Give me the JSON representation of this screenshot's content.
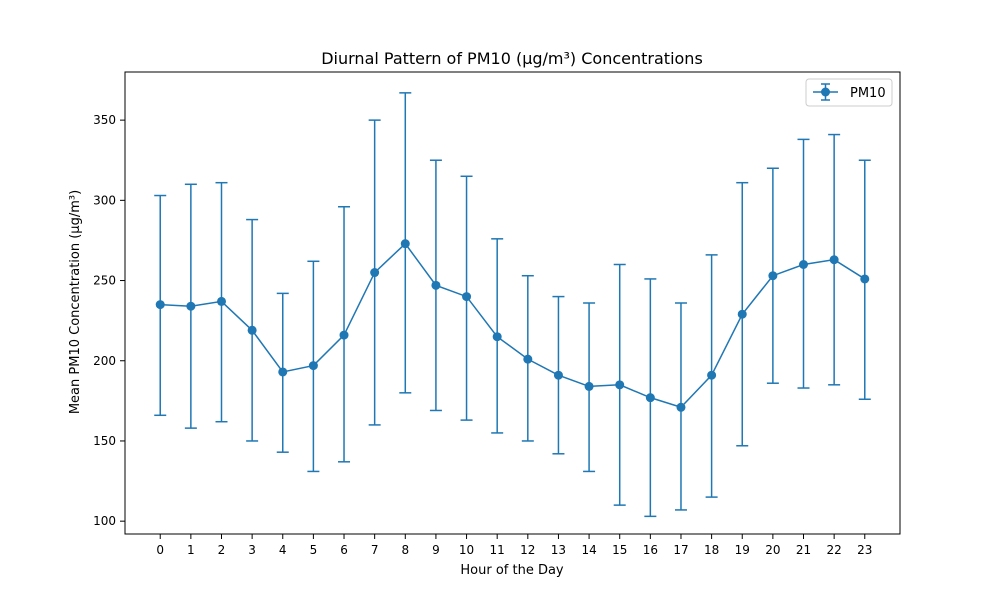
{
  "chart_data": {
    "type": "line",
    "title": "Diurnal Pattern of PM10 (µg/m³) Concentrations",
    "xlabel": "Hour of the Day",
    "ylabel": "Mean PM10 Concentration (µg/m³)",
    "categories": [
      "0",
      "1",
      "2",
      "3",
      "4",
      "5",
      "6",
      "7",
      "8",
      "9",
      "10",
      "11",
      "12",
      "13",
      "14",
      "15",
      "16",
      "17",
      "18",
      "19",
      "20",
      "21",
      "22",
      "23"
    ],
    "xlim": [
      -1.15,
      24.15
    ],
    "ylim": [
      92,
      380
    ],
    "yticks": [
      100,
      150,
      200,
      250,
      300,
      350
    ],
    "grid": false,
    "legend_position": "top-right",
    "series": [
      {
        "name": "PM10",
        "color": "#1f77b4",
        "marker": "circle",
        "values": [
          235,
          234,
          237,
          219,
          193,
          197,
          216,
          255,
          273,
          247,
          240,
          215,
          201,
          191,
          184,
          185,
          177,
          171,
          191,
          229,
          253,
          260,
          263,
          251
        ],
        "error_low": [
          166,
          158,
          162,
          150,
          143,
          131,
          137,
          160,
          180,
          169,
          163,
          155,
          150,
          142,
          131,
          110,
          103,
          107,
          115,
          147,
          186,
          183,
          185,
          176
        ],
        "error_high": [
          303,
          310,
          311,
          288,
          242,
          262,
          296,
          350,
          367,
          325,
          315,
          276,
          253,
          240,
          236,
          260,
          251,
          236,
          266,
          311,
          320,
          338,
          341,
          325
        ]
      }
    ]
  }
}
